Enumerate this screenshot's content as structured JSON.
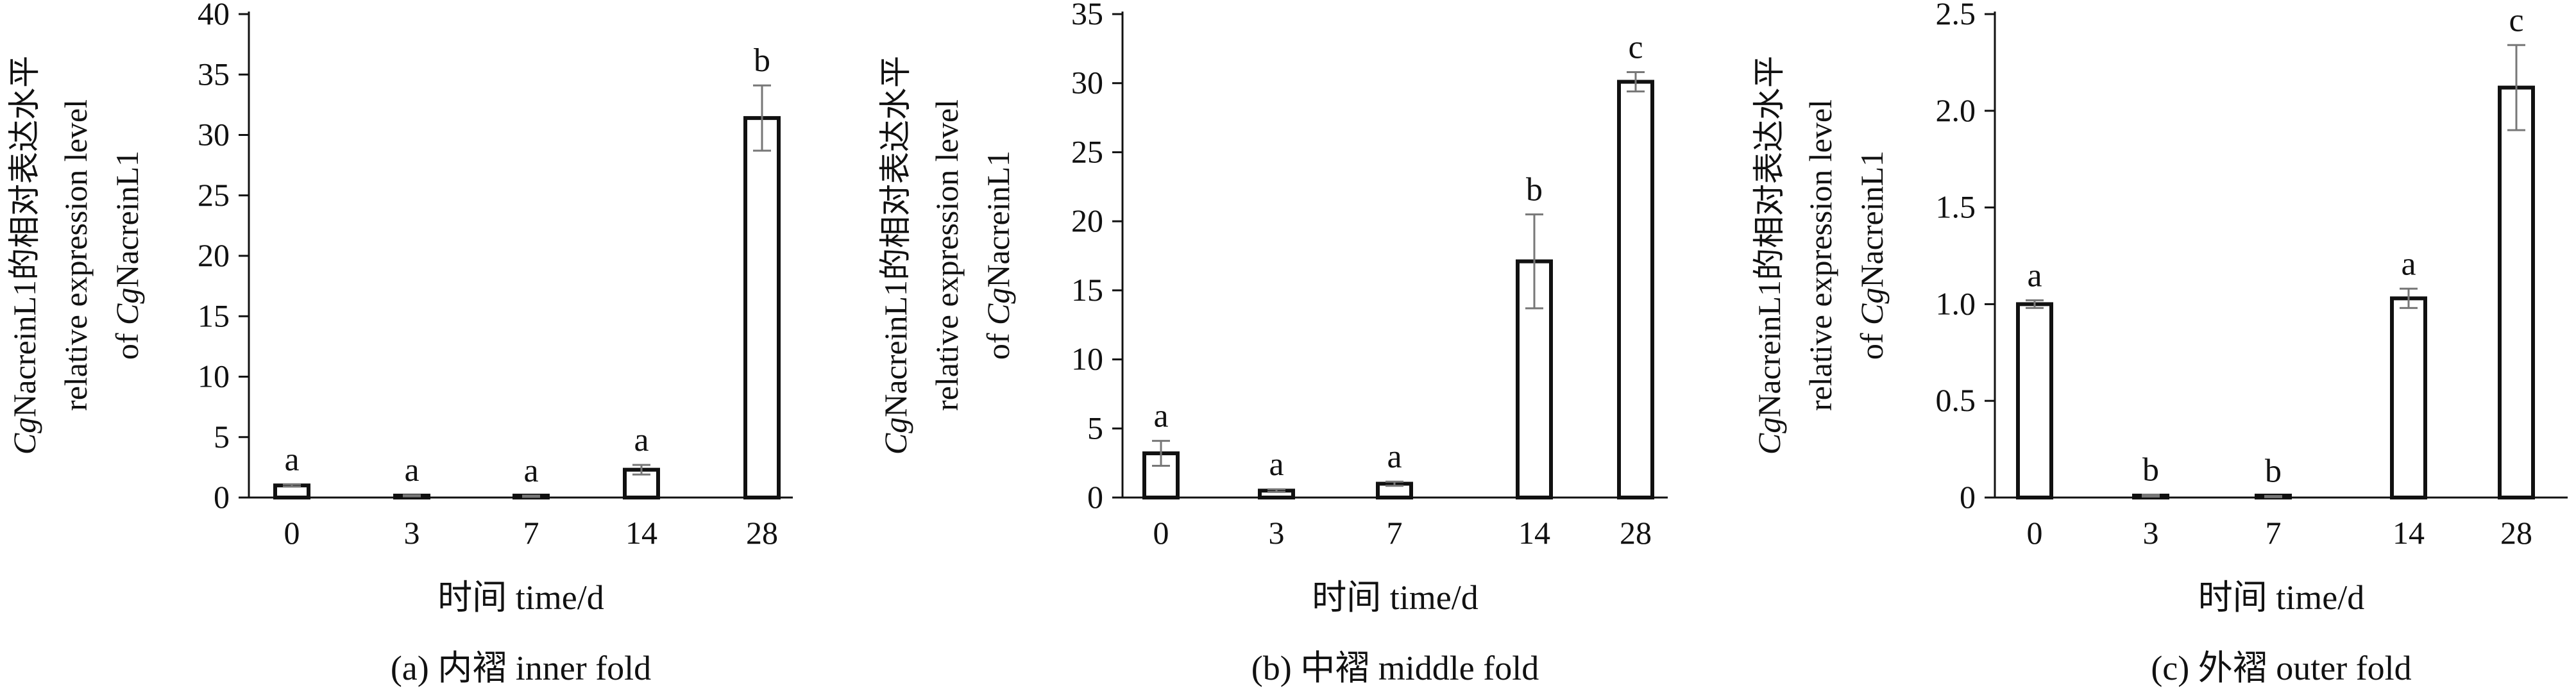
{
  "figure": {
    "panels": [
      {
        "caption": "(a) 内褶 inner fold"
      },
      {
        "caption": "(b) 中褶 middle fold"
      },
      {
        "caption": "(c) 外褶 outer fold"
      }
    ]
  },
  "colors": {
    "bar_fill": "#ffffff",
    "bar_stroke": "#111111",
    "axis": "#111111",
    "error_bar": "#777777"
  },
  "chart_data": [
    {
      "type": "bar",
      "categories": [
        "0",
        "3",
        "7",
        "14",
        "28"
      ],
      "values": [
        1.0,
        0.15,
        0.1,
        2.3,
        31.4
      ],
      "errors": [
        0.1,
        0.05,
        0.05,
        0.4,
        2.7
      ],
      "significance": [
        "a",
        "a",
        "a",
        "a",
        "b"
      ],
      "ylim": [
        0,
        40
      ],
      "yticks": [
        "0",
        "5",
        "10",
        "15",
        "20",
        "25",
        "30",
        "35",
        "40"
      ],
      "ytick_values": [
        0,
        5,
        10,
        15,
        20,
        25,
        30,
        35,
        40
      ],
      "xlabel": "时间 time/d",
      "ylabel_lines": [
        "CgNacreinL1的相对表达水平",
        "relative expression level",
        "of CgNacreinL1"
      ],
      "title": "(a) 内褶 inner fold"
    },
    {
      "type": "bar",
      "categories": [
        "0",
        "3",
        "7",
        "14",
        "28"
      ],
      "values": [
        3.2,
        0.5,
        1.0,
        17.1,
        30.1
      ],
      "errors": [
        0.9,
        0.1,
        0.15,
        3.4,
        0.7
      ],
      "significance": [
        "a",
        "a",
        "a",
        "b",
        "c"
      ],
      "ylim": [
        0,
        35
      ],
      "yticks": [
        "0",
        "5",
        "10",
        "15",
        "20",
        "25",
        "30",
        "35"
      ],
      "ytick_values": [
        0,
        5,
        10,
        15,
        20,
        25,
        30,
        35
      ],
      "xlabel": "时间 time/d",
      "ylabel_lines": [
        "CgNacreinL1的相对表达水平",
        "relative expression level",
        "of CgNacreinL1"
      ],
      "title": "(b) 中褶 middle fold"
    },
    {
      "type": "bar",
      "categories": [
        "0",
        "3",
        "7",
        "14",
        "28"
      ],
      "values": [
        1.0,
        0.01,
        0.005,
        1.03,
        2.12
      ],
      "errors": [
        0.02,
        0.005,
        0.003,
        0.05,
        0.22
      ],
      "significance": [
        "a",
        "b",
        "b",
        "a",
        "c"
      ],
      "ylim": [
        0,
        2.5
      ],
      "yticks": [
        "0",
        "0.5",
        "1.0",
        "1.5",
        "2.0",
        "2.5"
      ],
      "ytick_values": [
        0,
        0.5,
        1.0,
        1.5,
        2.0,
        2.5
      ],
      "xlabel": "时间 time/d",
      "ylabel_lines": [
        "CgNacreinL1的相对表达水平",
        "relative expression level",
        "of CgNacreinL1"
      ],
      "title": "(c) 外褶 outer fold"
    }
  ]
}
